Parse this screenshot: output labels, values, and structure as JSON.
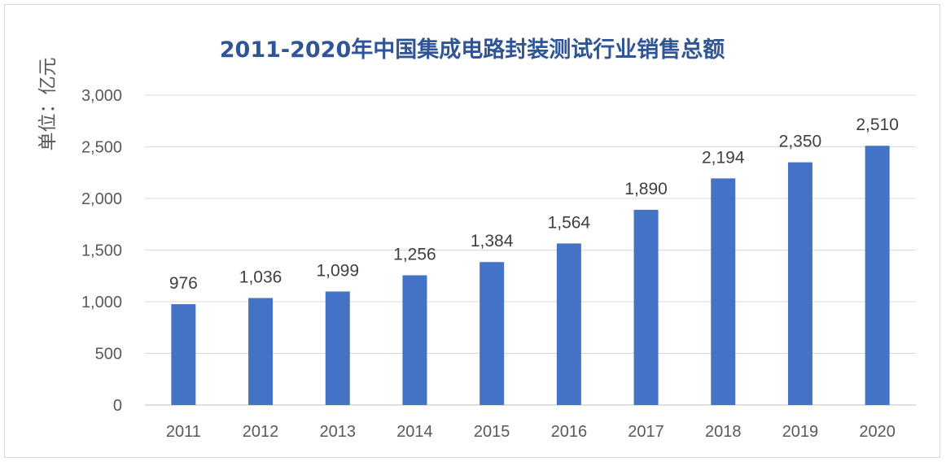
{
  "chart_data": {
    "type": "bar",
    "title": "2011-2020年中国集成电路封装测试行业销售总额",
    "ylabel": "单位：亿元",
    "xlabel": "",
    "categories": [
      "2011",
      "2012",
      "2013",
      "2014",
      "2015",
      "2016",
      "2017",
      "2018",
      "2019",
      "2020"
    ],
    "values": [
      976,
      1036,
      1099,
      1256,
      1384,
      1564,
      1890,
      2194,
      2350,
      2510
    ],
    "value_labels": [
      "976",
      "1,036",
      "1,099",
      "1,256",
      "1,384",
      "1,564",
      "1,890",
      "2,194",
      "2,350",
      "2,510"
    ],
    "ylim": [
      0,
      3000
    ],
    "yticks": [
      0,
      500,
      1000,
      1500,
      2000,
      2500,
      3000
    ],
    "ytick_labels": [
      "0",
      "500",
      "1,000",
      "1,500",
      "2,000",
      "2,500",
      "3,000"
    ],
    "grid": true,
    "legend": "none",
    "bar_color": "#4472c4",
    "title_color": "#2f5597"
  }
}
